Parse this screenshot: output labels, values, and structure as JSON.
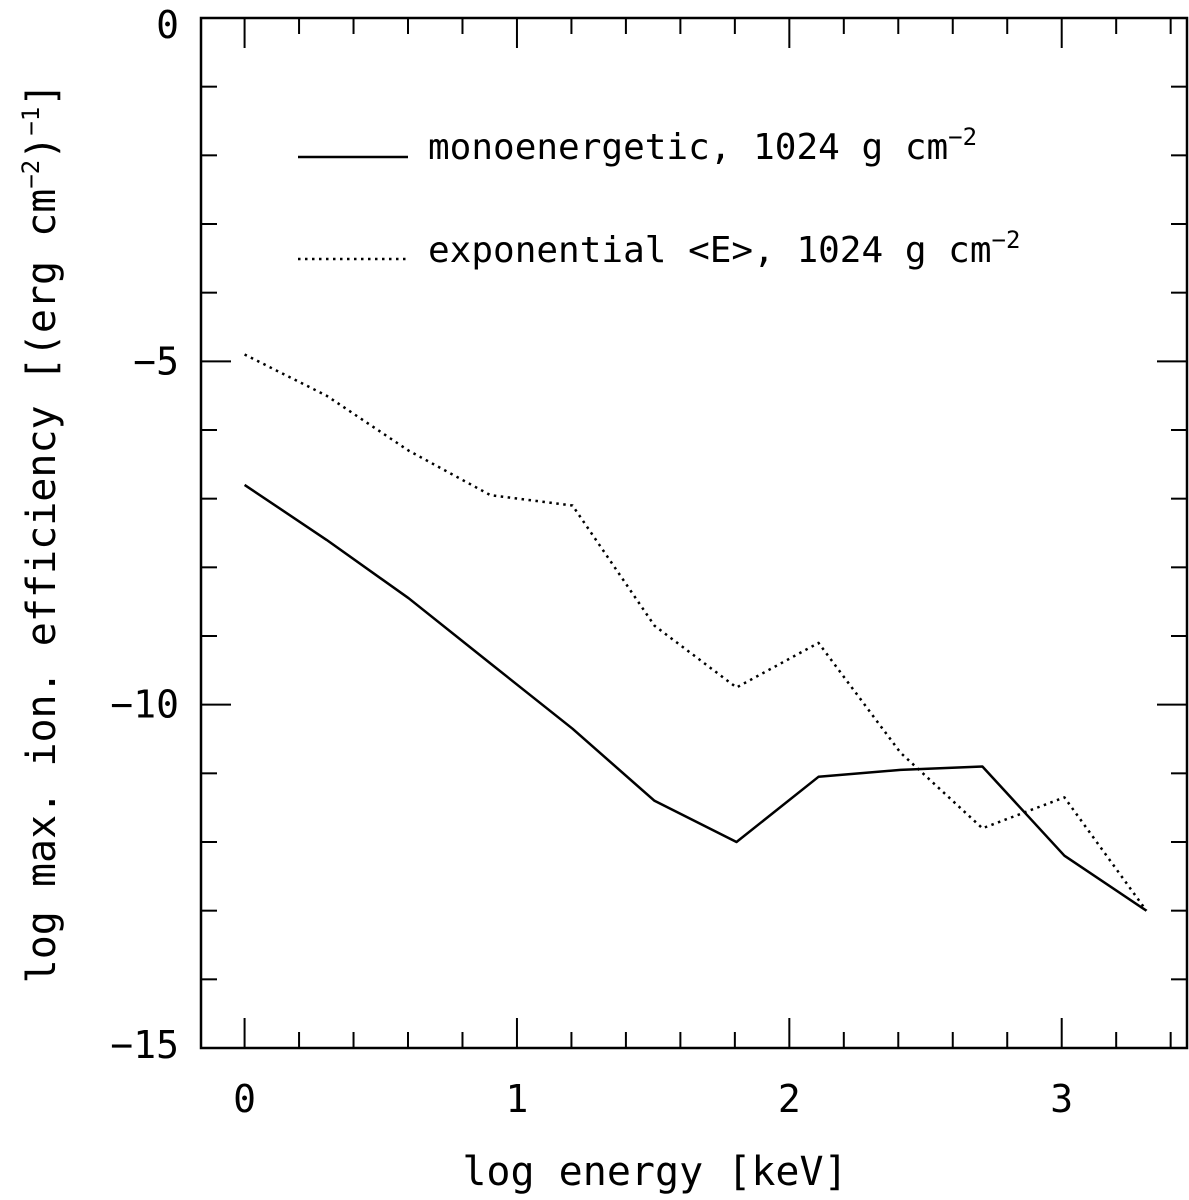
{
  "chart_data": {
    "type": "line",
    "xlabel": "log energy [keV]",
    "ylabel": {
      "pre": "log max. ion. efficiency [(erg cm",
      "exp1": "−2",
      "mid": ")",
      "exp2": "−1",
      "post": "]"
    },
    "xlim": [
      -0.16,
      3.46
    ],
    "ylim": [
      -15,
      0
    ],
    "xticks": [
      {
        "value": 0,
        "label": "0"
      },
      {
        "value": 1,
        "label": "1"
      },
      {
        "value": 2,
        "label": "2"
      },
      {
        "value": 3,
        "label": "3"
      }
    ],
    "yticks": [
      {
        "value": 0,
        "label": "0"
      },
      {
        "value": -5,
        "label": "−5"
      },
      {
        "value": -10,
        "label": "−10"
      },
      {
        "value": -15,
        "label": "−15"
      }
    ],
    "x_minor_step": 0.2,
    "y_minor_step": 1,
    "grid": false,
    "legend_position": "top-left",
    "series": [
      {
        "name": "monoenergetic, 1024 g cm",
        "name_exp": "−2",
        "style": "solid",
        "color": "#000000",
        "points": [
          [
            0,
            -6.8
          ],
          [
            0.301,
            -7.6
          ],
          [
            0.602,
            -8.45
          ],
          [
            0.903,
            -9.4
          ],
          [
            1.204,
            -10.35
          ],
          [
            1.505,
            -11.4
          ],
          [
            1.806,
            -12.0
          ],
          [
            2.107,
            -11.05
          ],
          [
            2.408,
            -10.95
          ],
          [
            2.709,
            -10.9
          ],
          [
            3.01,
            -12.2
          ],
          [
            3.311,
            -13.0
          ]
        ]
      },
      {
        "name": "exponential <E>, 1024 g cm",
        "name_exp": "−2",
        "style": "dotted",
        "color": "#000000",
        "points": [
          [
            0,
            -4.9
          ],
          [
            0.301,
            -5.5
          ],
          [
            0.602,
            -6.3
          ],
          [
            0.903,
            -6.95
          ],
          [
            1.204,
            -7.1
          ],
          [
            1.505,
            -8.85
          ],
          [
            1.806,
            -9.75
          ],
          [
            2.107,
            -9.1
          ],
          [
            2.408,
            -10.7
          ],
          [
            2.709,
            -11.8
          ],
          [
            3.01,
            -11.35
          ],
          [
            3.311,
            -13.0
          ]
        ]
      }
    ]
  }
}
